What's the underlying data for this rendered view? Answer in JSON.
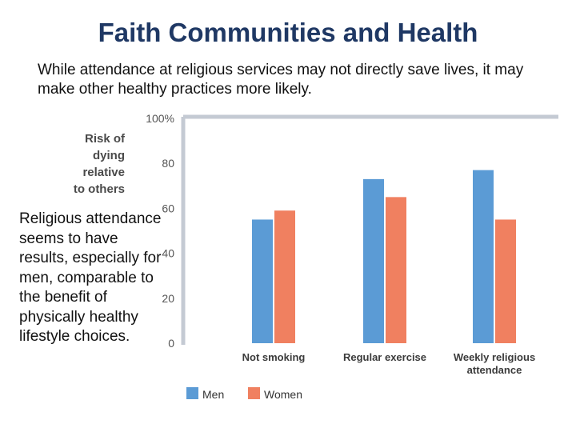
{
  "slide": {
    "title": "Faith Communities and Health",
    "subtitle": "While attendance at religious services may not directly save lives, it may make other healthy practices more likely.",
    "note": "Religious attendance seems to have results, especially for men, comparable to the benefit of physically healthy lifestyle choices."
  },
  "chart_data": {
    "type": "bar",
    "ylabel_lines": [
      "Risk of",
      "dying",
      "relative",
      "to others"
    ],
    "categories": [
      [
        "Not smoking"
      ],
      [
        "Regular exercise"
      ],
      [
        "Weekly religious",
        "attendance"
      ]
    ],
    "series": [
      {
        "name": "Men",
        "color": "#5b9bd5",
        "values": [
          55,
          73,
          77
        ]
      },
      {
        "name": "Women",
        "color": "#f08060",
        "values": [
          59,
          65,
          55
        ]
      }
    ],
    "ylim": [
      0,
      100
    ],
    "yticks": [
      0,
      20,
      40,
      60,
      80,
      100
    ],
    "ytick_labels": [
      "0",
      "20",
      "40",
      "60",
      "80",
      "100%"
    ],
    "legend_position": "bottom"
  }
}
